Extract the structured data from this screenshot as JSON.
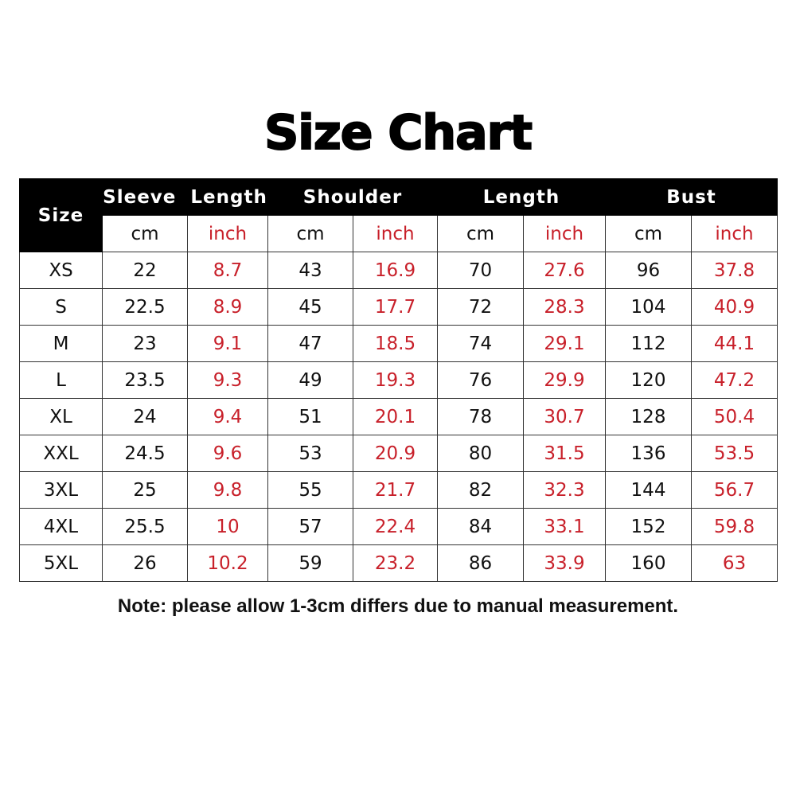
{
  "title": "Size Chart",
  "header": {
    "size": "Size",
    "groups": [
      "Sleeve  Length",
      "Shoulder",
      "Length",
      "Bust"
    ],
    "units": [
      "cm",
      "inch",
      "cm",
      "inch",
      "cm",
      "inch",
      "cm",
      "inch"
    ]
  },
  "colors": {
    "inch": "#c8202a",
    "header_bg": "#000000"
  },
  "rows": [
    [
      "XS",
      "22",
      "8.7",
      "43",
      "16.9",
      "70",
      "27.6",
      "96",
      "37.8"
    ],
    [
      "S",
      "22.5",
      "8.9",
      "45",
      "17.7",
      "72",
      "28.3",
      "104",
      "40.9"
    ],
    [
      "M",
      "23",
      "9.1",
      "47",
      "18.5",
      "74",
      "29.1",
      "112",
      "44.1"
    ],
    [
      "L",
      "23.5",
      "9.3",
      "49",
      "19.3",
      "76",
      "29.9",
      "120",
      "47.2"
    ],
    [
      "XL",
      "24",
      "9.4",
      "51",
      "20.1",
      "78",
      "30.7",
      "128",
      "50.4"
    ],
    [
      "XXL",
      "24.5",
      "9.6",
      "53",
      "20.9",
      "80",
      "31.5",
      "136",
      "53.5"
    ],
    [
      "3XL",
      "25",
      "9.8",
      "55",
      "21.7",
      "82",
      "32.3",
      "144",
      "56.7"
    ],
    [
      "4XL",
      "25.5",
      "10",
      "57",
      "22.4",
      "84",
      "33.1",
      "152",
      "59.8"
    ],
    [
      "5XL",
      "26",
      "10.2",
      "59",
      "23.2",
      "86",
      "33.9",
      "160",
      "63"
    ]
  ],
  "note": "Note: please allow 1-3cm differs due to manual measurement."
}
